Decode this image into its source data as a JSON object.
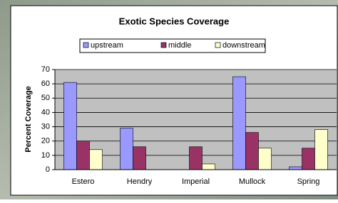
{
  "chart_data": {
    "type": "bar",
    "title": "Exotic Species Coverage",
    "y_label": "Percent Coverage",
    "categories": [
      "Estero",
      "Hendry",
      "Imperial",
      "Mullock",
      "Spring"
    ],
    "series": [
      {
        "name": "upstream",
        "color": "#9999ff",
        "values": [
          61,
          29,
          0,
          65,
          2
        ]
      },
      {
        "name": "middle",
        "color": "#993366",
        "values": [
          20,
          16,
          16,
          26,
          15
        ]
      },
      {
        "name": "downstream",
        "color": "#ffffcc",
        "values": [
          14,
          0,
          4,
          15,
          28
        ]
      }
    ],
    "ylim": [
      0,
      70
    ],
    "yticks": [
      0,
      10,
      20,
      30,
      40,
      50,
      60,
      70
    ],
    "grid": true
  }
}
